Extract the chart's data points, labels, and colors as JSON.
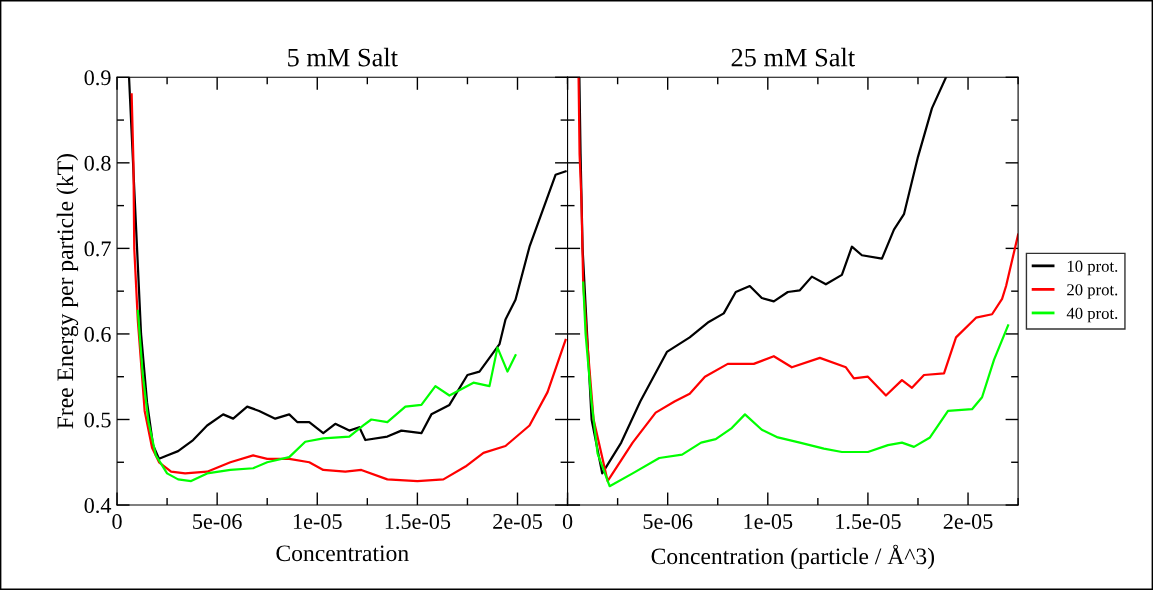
{
  "chart_data": [
    {
      "type": "line",
      "title": "5 mM Salt",
      "xlabel": "Concentration",
      "ylabel": "Free Energy per particle (kT)",
      "xlim": [
        0,
        2.25e-05
      ],
      "ylim": [
        0.4,
        0.9
      ],
      "xticks": [
        {
          "value": 0,
          "label": "0"
        },
        {
          "value": 2.5e-06,
          "label": null
        },
        {
          "value": 5e-06,
          "label": "5e-06"
        },
        {
          "value": 7.5e-06,
          "label": null
        },
        {
          "value": 1e-05,
          "label": "1e-05"
        },
        {
          "value": 1.25e-05,
          "label": null
        },
        {
          "value": 1.5e-05,
          "label": "1.5e-05"
        },
        {
          "value": 1.75e-05,
          "label": null
        },
        {
          "value": 2e-05,
          "label": "2e-05"
        },
        {
          "value": 2.25e-05,
          "label": null
        }
      ],
      "yticks": [
        0.4,
        {
          "value": 0.45,
          "label": null
        },
        0.5,
        {
          "value": 0.55,
          "label": null
        },
        0.6,
        {
          "value": 0.65,
          "label": null
        },
        0.7,
        {
          "value": 0.75,
          "label": null
        },
        0.8,
        {
          "value": 0.85,
          "label": null
        },
        0.9
      ],
      "series": [
        {
          "color": "#000000",
          "x": [
            6e-07,
            7e-07,
            1e-06,
            1.2e-06,
            1.5e-06,
            1.8e-06,
            2.1e-06,
            2.5e-06,
            3.05e-06,
            3.8e-06,
            4.5e-06,
            5.3e-06,
            5.8e-06,
            6.5e-06,
            7.1e-06,
            7.9e-06,
            8.6e-06,
            9e-06,
            9.6e-06,
            1.03e-05,
            1.09e-05,
            1.16e-05,
            1.21e-05,
            1.24e-05,
            1.35e-05,
            1.42e-05,
            1.52e-05,
            1.57e-05,
            1.66e-05,
            1.75e-05,
            1.81e-05,
            1.91e-05,
            1.94e-05,
            1.99e-05,
            2.06e-05,
            2.19e-05,
            2.24e-05
          ],
          "values": [
            0.9,
            0.85,
            0.7,
            0.6,
            0.52,
            0.47,
            0.454,
            0.458,
            0.463,
            0.476,
            0.493,
            0.506,
            0.501,
            0.515,
            0.51,
            0.501,
            0.506,
            0.497,
            0.497,
            0.484,
            0.495,
            0.487,
            0.491,
            0.476,
            0.48,
            0.487,
            0.484,
            0.506,
            0.517,
            0.552,
            0.556,
            0.588,
            0.617,
            0.64,
            0.702,
            0.786,
            0.79
          ]
        },
        {
          "color": "#ff0000",
          "x": [
            7.3e-07,
            8.2e-07,
            8.6e-07,
            1.04e-06,
            1.1e-06,
            1.38e-06,
            1.75e-06,
            2.1e-06,
            2.7e-06,
            3.4e-06,
            4.5e-06,
            5.66e-06,
            6.8e-06,
            7.5e-06,
            8.6e-06,
            9.6e-06,
            1.03e-05,
            1.14e-05,
            1.22e-05,
            1.35e-05,
            1.5e-05,
            1.63e-05,
            1.74e-05,
            1.83e-05,
            1.94e-05,
            2.06e-05,
            2.15e-05,
            2.24e-05
          ],
          "values": [
            0.88,
            0.8,
            0.7,
            0.615,
            0.597,
            0.51,
            0.467,
            0.45,
            0.439,
            0.437,
            0.439,
            0.45,
            0.458,
            0.454,
            0.454,
            0.45,
            0.441,
            0.439,
            0.441,
            0.43,
            0.428,
            0.43,
            0.445,
            0.461,
            0.469,
            0.493,
            0.532,
            0.593
          ]
        },
        {
          "color": "#00ff00",
          "x": [
            1.04e-06,
            1.28e-06,
            1.57e-06,
            1.94e-06,
            2.5e-06,
            3.05e-06,
            3.7e-06,
            4.5e-06,
            5.66e-06,
            6.8e-06,
            7.5e-06,
            8.6e-06,
            9.4e-06,
            1.03e-05,
            1.16e-05,
            1.23e-05,
            1.27e-05,
            1.35e-05,
            1.44e-05,
            1.52e-05,
            1.59e-05,
            1.66e-05,
            1.78e-05,
            1.86e-05,
            1.9e-05,
            1.95e-05,
            1.99e-05
          ],
          "values": [
            0.627,
            0.554,
            0.497,
            0.458,
            0.437,
            0.43,
            0.428,
            0.437,
            0.441,
            0.443,
            0.45,
            0.456,
            0.474,
            0.478,
            0.48,
            0.493,
            0.5,
            0.497,
            0.515,
            0.517,
            0.539,
            0.528,
            0.543,
            0.539,
            0.584,
            0.556,
            0.575
          ]
        }
      ]
    },
    {
      "type": "line",
      "title": "25 mM Salt",
      "xlabel": "Concentration (particle / Å^3)",
      "tick_labels": "x",
      "legend": "right",
      "xlim": [
        0,
        2.25e-05
      ],
      "ylim": [
        0.4,
        0.9
      ],
      "xticks": [
        {
          "value": 0,
          "label": "0"
        },
        {
          "value": 2.5e-06,
          "label": null
        },
        {
          "value": 5e-06,
          "label": "5e-06"
        },
        {
          "value": 7.5e-06,
          "label": null
        },
        {
          "value": 1e-05,
          "label": "1e-05"
        },
        {
          "value": 1.25e-05,
          "label": null
        },
        {
          "value": 1.5e-05,
          "label": "1.5e-05"
        },
        {
          "value": 1.75e-05,
          "label": null
        },
        {
          "value": 2e-05,
          "label": "2e-05"
        },
        {
          "value": 2.25e-05,
          "label": null
        }
      ],
      "yticks": [
        0.4,
        {
          "value": 0.45,
          "label": null
        },
        0.5,
        {
          "value": 0.55,
          "label": null
        },
        0.6,
        {
          "value": 0.65,
          "label": null
        },
        0.7,
        {
          "value": 0.75,
          "label": null
        },
        0.8,
        {
          "value": 0.85,
          "label": null
        },
        0.9
      ],
      "series": [
        {
          "name": "10 prot.",
          "color": "#000000",
          "x": [
            5.9e-07,
            6.5e-07,
            7.5e-07,
            1.2e-06,
            1.73e-06,
            2.68e-06,
            3.63e-06,
            4.96e-06,
            6.1e-06,
            7.05e-06,
            7.8e-06,
            8.4e-06,
            9.1e-06,
            9.7e-06,
            1.03e-05,
            1.1e-05,
            1.16e-05,
            1.22e-05,
            1.29e-05,
            1.37e-05,
            1.42e-05,
            1.47e-05,
            1.57e-05,
            1.63e-05,
            1.68e-05,
            1.75e-05,
            1.82e-05,
            1.89e-05
          ],
          "values": [
            0.9,
            0.81,
            0.7,
            0.5,
            0.437,
            0.473,
            0.521,
            0.579,
            0.596,
            0.614,
            0.624,
            0.649,
            0.656,
            0.642,
            0.638,
            0.649,
            0.651,
            0.667,
            0.658,
            0.669,
            0.702,
            0.692,
            0.688,
            0.722,
            0.74,
            0.807,
            0.864,
            0.9
          ]
        },
        {
          "name": "20 prot.",
          "color": "#ff0000",
          "x": [
            5.5e-07,
            6e-07,
            6.9e-07,
            7.8e-07,
            9.5e-07,
            1.3e-06,
            2e-06,
            3.25e-06,
            4.4e-06,
            5.34e-06,
            6.1e-06,
            6.86e-06,
            8e-06,
            9.3e-06,
            1.03e-05,
            1.12e-05,
            1.26e-05,
            1.39e-05,
            1.43e-05,
            1.5e-05,
            1.59e-05,
            1.67e-05,
            1.72e-05,
            1.78e-05,
            1.88e-05,
            1.94e-05,
            2.04e-05,
            2.12e-05,
            2.17e-05,
            2.19e-05,
            2.25e-05
          ],
          "values": [
            0.9,
            0.81,
            0.758,
            0.66,
            0.6,
            0.5,
            0.428,
            0.473,
            0.508,
            0.521,
            0.53,
            0.55,
            0.565,
            0.565,
            0.574,
            0.561,
            0.572,
            0.561,
            0.548,
            0.55,
            0.528,
            0.546,
            0.537,
            0.552,
            0.554,
            0.596,
            0.619,
            0.623,
            0.641,
            0.656,
            0.716
          ]
        },
        {
          "name": "40 prot.",
          "color": "#00ff00",
          "x": [
            7.8e-07,
            9e-07,
            1.2e-06,
            1.5e-06,
            2.1e-06,
            3.25e-06,
            4.58e-06,
            5.72e-06,
            6.67e-06,
            7.4e-06,
            8.2e-06,
            8.86e-06,
            9.7e-06,
            1.05e-05,
            1.16e-05,
            1.28e-05,
            1.37e-05,
            1.5e-05,
            1.6e-05,
            1.67e-05,
            1.73e-05,
            1.81e-05,
            1.9e-05,
            2.02e-05,
            2.07e-05,
            2.13e-05,
            2.2e-05
          ],
          "values": [
            0.66,
            0.6,
            0.52,
            0.46,
            0.422,
            0.437,
            0.455,
            0.459,
            0.473,
            0.477,
            0.49,
            0.506,
            0.488,
            0.479,
            0.473,
            0.466,
            0.462,
            0.462,
            0.47,
            0.473,
            0.468,
            0.479,
            0.51,
            0.512,
            0.526,
            0.57,
            0.61
          ]
        }
      ]
    }
  ]
}
